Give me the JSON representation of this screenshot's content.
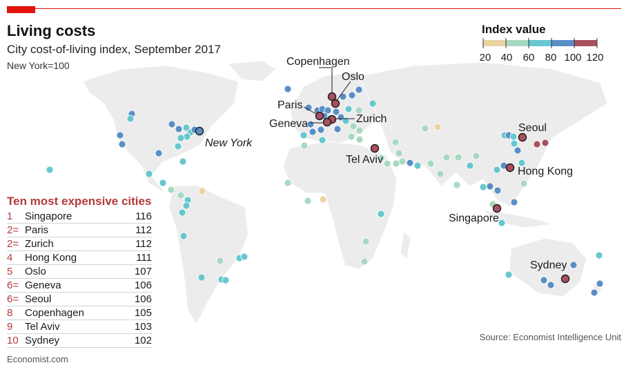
{
  "header": {
    "title": "Living costs",
    "subtitle": "City cost-of-living index, September 2017",
    "note": "New York=100"
  },
  "legend": {
    "title": "Index value",
    "ticks": [
      "20",
      "40",
      "60",
      "80",
      "100",
      "120"
    ],
    "bins": [
      {
        "from": 20,
        "to": 40,
        "color": "#ebd3a3"
      },
      {
        "from": 40,
        "to": 60,
        "color": "#a8d9c0"
      },
      {
        "from": 60,
        "to": 80,
        "color": "#66c7cf"
      },
      {
        "from": 80,
        "to": 100,
        "color": "#5a8fc6"
      },
      {
        "from": 100,
        "to": 120,
        "color": "#a8505d"
      }
    ]
  },
  "ranking": {
    "title": "Ten most expensive cities",
    "rows": [
      {
        "rank": "1",
        "city": "Singapore",
        "value": "116"
      },
      {
        "rank": "2=",
        "city": "Paris",
        "value": "112"
      },
      {
        "rank": "2=",
        "city": "Zurich",
        "value": "112"
      },
      {
        "rank": "4",
        "city": "Hong Kong",
        "value": "111"
      },
      {
        "rank": "5",
        "city": "Oslo",
        "value": "107"
      },
      {
        "rank": "6=",
        "city": "Geneva",
        "value": "106"
      },
      {
        "rank": "6=",
        "city": "Seoul",
        "value": "106"
      },
      {
        "rank": "8",
        "city": "Copenhagen",
        "value": "105"
      },
      {
        "rank": "9",
        "city": "Tel Aviv",
        "value": "103"
      },
      {
        "rank": "10",
        "city": "Sydney",
        "value": "102"
      }
    ]
  },
  "labels": {
    "new_york": "New York",
    "copenhagen": "Copenhagen",
    "oslo": "Oslo",
    "paris": "Paris",
    "zurich": "Zurich",
    "geneva": "Geneva",
    "tel_aviv": "Tel Aviv",
    "seoul": "Seoul",
    "hong_kong": "Hong Kong",
    "singapore": "Singapore",
    "sydney": "Sydney"
  },
  "source": "Source: Economist Intelligence Unit",
  "brand": "Economist.com"
}
